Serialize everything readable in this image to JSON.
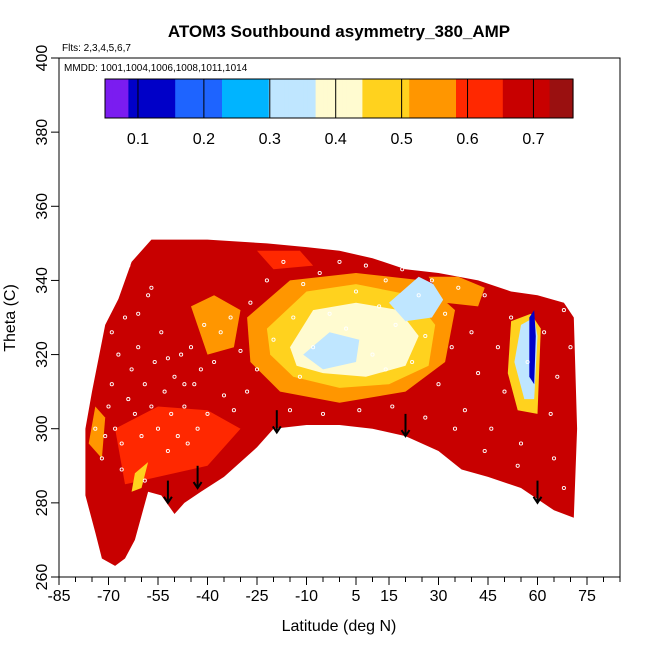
{
  "chart_data": {
    "type": "heatmap",
    "title": "ATOM3 Southbound asymmetry_380_AMP",
    "subtitle": "Flts: 2,3,4,5,6,7",
    "annotation": "MMDD: 1001,1004,1006,1008,1011,1014",
    "xlabel": "Latitude (deg N)",
    "ylabel": "Theta (C)",
    "xlim": [
      -85,
      85
    ],
    "ylim": [
      260,
      400
    ],
    "x_ticks": [
      -85,
      -70,
      -55,
      -40,
      -25,
      -10,
      5,
      15,
      30,
      45,
      60,
      75
    ],
    "y_ticks": [
      260,
      280,
      300,
      320,
      340,
      360,
      380,
      400
    ],
    "colorbar": {
      "range": [
        0.05,
        0.76
      ],
      "ticks": [
        0.1,
        0.2,
        0.3,
        0.4,
        0.5,
        0.6,
        0.7
      ],
      "tick_labels": [
        "0.1",
        "0.2",
        "0.3",
        "0.4",
        "0.5",
        "0.6",
        "0.7"
      ],
      "colors": [
        "#7b1cf0",
        "#0000c8",
        "#1e64ff",
        "#00b4ff",
        "#bfe6ff",
        "#fffbd0",
        "#ffd21e",
        "#ff9600",
        "#ff2800",
        "#c80000",
        "#9a1010"
      ]
    },
    "domain_outline": [
      [
        -77,
        300
      ],
      [
        -75,
        310
      ],
      [
        -71,
        328
      ],
      [
        -67,
        335
      ],
      [
        -63,
        345
      ],
      [
        -57,
        351
      ],
      [
        -40,
        351
      ],
      [
        -22,
        350
      ],
      [
        -10,
        349
      ],
      [
        0,
        348
      ],
      [
        10,
        346
      ],
      [
        20,
        343
      ],
      [
        30,
        342
      ],
      [
        42,
        340
      ],
      [
        52,
        337
      ],
      [
        60,
        336
      ],
      [
        68,
        334
      ],
      [
        71,
        330
      ],
      [
        72,
        300
      ],
      [
        71,
        276
      ],
      [
        65,
        278
      ],
      [
        55,
        284
      ],
      [
        45,
        287
      ],
      [
        37,
        289
      ],
      [
        30,
        294
      ],
      [
        20,
        298
      ],
      [
        10,
        300
      ],
      [
        0,
        301
      ],
      [
        -10,
        301
      ],
      [
        -20,
        300
      ],
      [
        -25,
        295
      ],
      [
        -35,
        287
      ],
      [
        -42,
        283
      ],
      [
        -47,
        280
      ],
      [
        -50,
        277
      ],
      [
        -54,
        282
      ],
      [
        -58,
        283
      ],
      [
        -62,
        270
      ],
      [
        -65,
        265
      ],
      [
        -68,
        263
      ],
      [
        -72,
        265
      ],
      [
        -74,
        272
      ],
      [
        -77,
        282
      ]
    ],
    "regions": [
      {
        "value": 0.62,
        "points": [
          [
            -68,
            300
          ],
          [
            -55,
            306
          ],
          [
            -40,
            305
          ],
          [
            -30,
            300
          ],
          [
            -40,
            290
          ],
          [
            -55,
            287
          ],
          [
            -65,
            285
          ]
        ]
      },
      {
        "value": 0.57,
        "points": [
          [
            -28,
            330
          ],
          [
            -15,
            340
          ],
          [
            5,
            342
          ],
          [
            25,
            340
          ],
          [
            35,
            332
          ],
          [
            32,
            318
          ],
          [
            20,
            310
          ],
          [
            0,
            307
          ],
          [
            -18,
            310
          ],
          [
            -27,
            318
          ]
        ]
      },
      {
        "value": 0.5,
        "points": [
          [
            -22,
            327
          ],
          [
            -10,
            337
          ],
          [
            5,
            339
          ],
          [
            22,
            336
          ],
          [
            29,
            328
          ],
          [
            27,
            317
          ],
          [
            15,
            312
          ],
          [
            0,
            311
          ],
          [
            -14,
            314
          ],
          [
            -21,
            320
          ]
        ]
      },
      {
        "value": 0.42,
        "points": [
          [
            -15,
            322
          ],
          [
            -8,
            332
          ],
          [
            5,
            334
          ],
          [
            18,
            332
          ],
          [
            24,
            325
          ],
          [
            20,
            317
          ],
          [
            8,
            314
          ],
          [
            -5,
            315
          ],
          [
            -13,
            317
          ]
        ]
      },
      {
        "value": 0.36,
        "points": [
          [
            -11,
            320
          ],
          [
            -3,
            326
          ],
          [
            6,
            324
          ],
          [
            5,
            318
          ],
          [
            -5,
            316
          ]
        ]
      },
      {
        "value": 0.36,
        "points": [
          [
            15,
            334
          ],
          [
            24,
            341
          ],
          [
            33,
            337
          ],
          [
            28,
            330
          ],
          [
            20,
            329
          ]
        ]
      },
      {
        "value": 0.55,
        "points": [
          [
            27,
            341
          ],
          [
            36,
            341
          ],
          [
            44,
            338
          ],
          [
            42,
            333
          ],
          [
            32,
            334
          ]
        ]
      },
      {
        "value": 0.69,
        "points": [
          [
            45,
            334
          ],
          [
            60,
            334
          ],
          [
            66,
            330
          ],
          [
            66,
            300
          ],
          [
            60,
            296
          ],
          [
            48,
            298
          ],
          [
            44,
            315
          ]
        ]
      },
      {
        "value": 0.5,
        "points": [
          [
            52,
            329
          ],
          [
            58,
            331
          ],
          [
            61,
            327
          ],
          [
            60,
            304
          ],
          [
            54,
            305
          ],
          [
            51,
            315
          ]
        ]
      },
      {
        "value": 0.3,
        "points": [
          [
            55,
            328
          ],
          [
            59,
            330
          ],
          [
            60,
            325
          ],
          [
            59,
            308
          ],
          [
            56,
            308
          ],
          [
            53,
            318
          ]
        ]
      },
      {
        "value": 0.12,
        "points": [
          [
            57.5,
            330
          ],
          [
            59,
            332
          ],
          [
            59.5,
            325
          ],
          [
            59,
            312
          ],
          [
            57.5,
            314
          ]
        ]
      },
      {
        "value": 0.53,
        "points": [
          [
            -45,
            333
          ],
          [
            -38,
            336
          ],
          [
            -30,
            332
          ],
          [
            -32,
            322
          ],
          [
            -40,
            320
          ]
        ]
      },
      {
        "value": 0.6,
        "points": [
          [
            -25,
            348
          ],
          [
            -12,
            348
          ],
          [
            -8,
            344
          ],
          [
            -20,
            343
          ]
        ]
      },
      {
        "value": 0.52,
        "points": [
          [
            -76,
            296
          ],
          [
            -74,
            306
          ],
          [
            -71,
            303
          ],
          [
            -72,
            292
          ]
        ]
      },
      {
        "value": 0.47,
        "points": [
          [
            -62,
            288
          ],
          [
            -58,
            291
          ],
          [
            -60,
            284
          ],
          [
            -63,
            283
          ]
        ]
      }
    ],
    "arrows": [
      {
        "lat": -52,
        "theta_top": 286,
        "theta_tip": 280
      },
      {
        "lat": -43,
        "theta_top": 290,
        "theta_tip": 284
      },
      {
        "lat": -19,
        "theta_top": 305,
        "theta_tip": 299
      },
      {
        "lat": 20,
        "theta_top": 304,
        "theta_tip": 298
      },
      {
        "lat": 60,
        "theta_top": 286,
        "theta_tip": 280
      }
    ],
    "obs_points": [
      [
        -72,
        292
      ],
      [
        -71,
        298
      ],
      [
        -70,
        306
      ],
      [
        -69,
        312
      ],
      [
        -68,
        300
      ],
      [
        -67,
        320
      ],
      [
        -66,
        296
      ],
      [
        -65,
        330
      ],
      [
        -64,
        308
      ],
      [
        -63,
        316
      ],
      [
        -62,
        304
      ],
      [
        -61,
        322
      ],
      [
        -60,
        298
      ],
      [
        -59,
        312
      ],
      [
        -58,
        336
      ],
      [
        -57,
        306
      ],
      [
        -56,
        318
      ],
      [
        -55,
        300
      ],
      [
        -54,
        326
      ],
      [
        -53,
        310
      ],
      [
        -52,
        294
      ],
      [
        -51,
        304
      ],
      [
        -50,
        314
      ],
      [
        -49,
        298
      ],
      [
        -48,
        320
      ],
      [
        -47,
        306
      ],
      [
        -46,
        296
      ],
      [
        -45,
        322
      ],
      [
        -44,
        312
      ],
      [
        -43,
        300
      ],
      [
        -42,
        316
      ],
      [
        -41,
        328
      ],
      [
        -40,
        304
      ],
      [
        -38,
        318
      ],
      [
        -36,
        326
      ],
      [
        -35,
        309
      ],
      [
        -33,
        330
      ],
      [
        -30,
        321
      ],
      [
        -27,
        334
      ],
      [
        -25,
        316
      ],
      [
        -22,
        340
      ],
      [
        -20,
        324
      ],
      [
        -17,
        345
      ],
      [
        -14,
        330
      ],
      [
        -11,
        339
      ],
      [
        -8,
        322
      ],
      [
        -6,
        342
      ],
      [
        -3,
        331
      ],
      [
        0,
        345
      ],
      [
        2,
        327
      ],
      [
        5,
        337
      ],
      [
        8,
        344
      ],
      [
        10,
        320
      ],
      [
        12,
        333
      ],
      [
        14,
        340
      ],
      [
        17,
        328
      ],
      [
        19,
        343
      ],
      [
        22,
        318
      ],
      [
        24,
        336
      ],
      [
        26,
        325
      ],
      [
        28,
        340
      ],
      [
        30,
        312
      ],
      [
        32,
        331
      ],
      [
        34,
        322
      ],
      [
        36,
        338
      ],
      [
        38,
        305
      ],
      [
        40,
        326
      ],
      [
        42,
        315
      ],
      [
        44,
        336
      ],
      [
        46,
        300
      ],
      [
        48,
        322
      ],
      [
        50,
        310
      ],
      [
        52,
        330
      ],
      [
        55,
        296
      ],
      [
        57,
        318
      ],
      [
        62,
        326
      ],
      [
        64,
        304
      ],
      [
        66,
        314
      ],
      [
        68,
        332
      ],
      [
        70,
        322
      ],
      [
        -61,
        331
      ],
      [
        -67,
        340
      ],
      [
        -64,
        344
      ],
      [
        -57,
        338
      ],
      [
        -69,
        326
      ],
      [
        -74,
        300
      ],
      [
        -52,
        319
      ],
      [
        -47,
        312
      ],
      [
        -32,
        305
      ],
      [
        -28,
        310
      ],
      [
        -15,
        305
      ],
      [
        -5,
        304
      ],
      [
        6,
        305
      ],
      [
        16,
        306
      ],
      [
        26,
        303
      ],
      [
        35,
        300
      ],
      [
        44,
        294
      ],
      [
        54,
        290
      ],
      [
        -66,
        289
      ],
      [
        -59,
        286
      ],
      [
        65,
        292
      ],
      [
        68,
        284
      ],
      [
        -12,
        314
      ],
      [
        14,
        316
      ]
    ]
  }
}
